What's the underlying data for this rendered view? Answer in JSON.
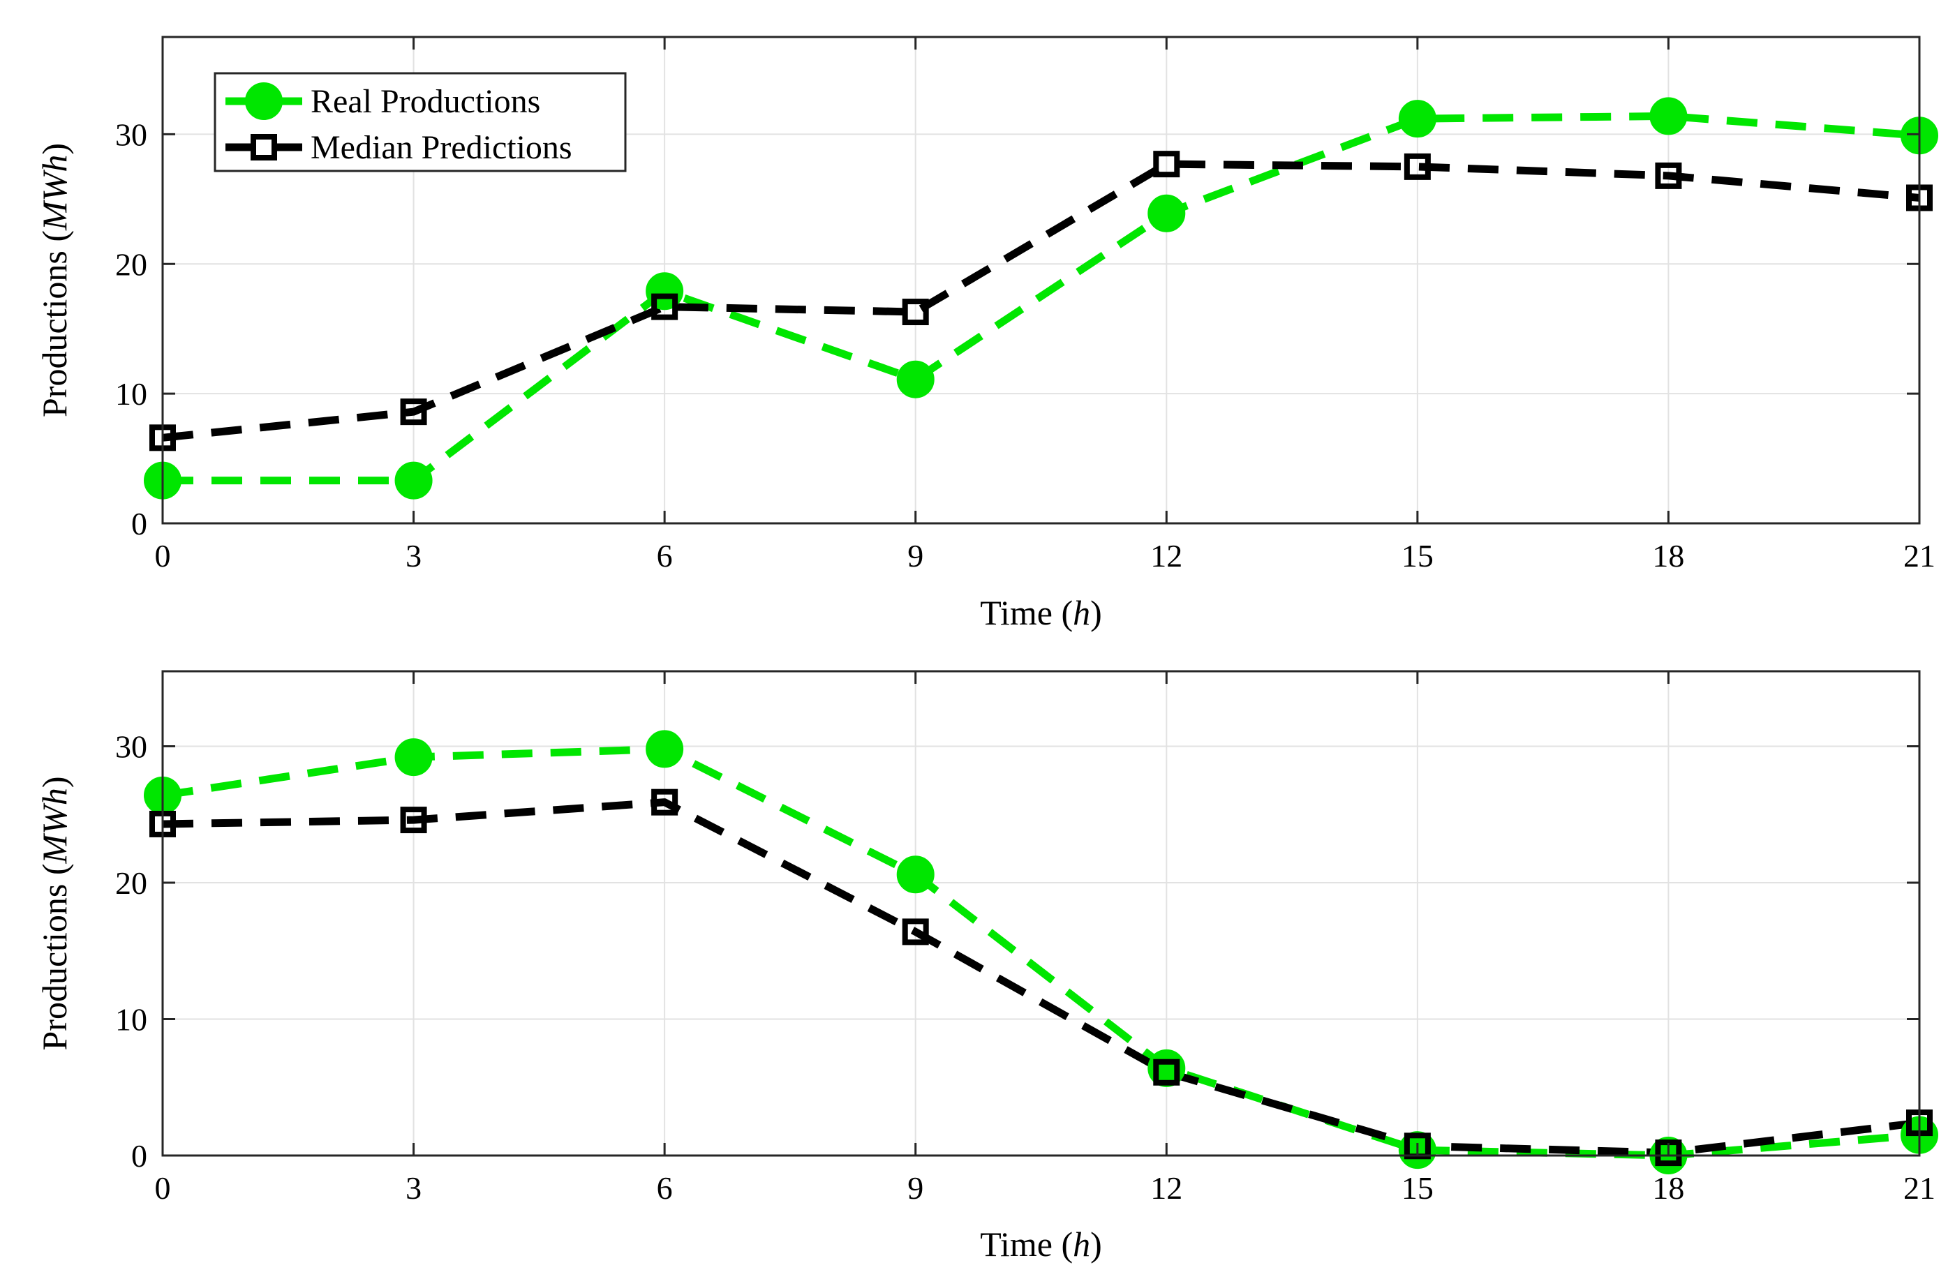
{
  "chart_data": [
    {
      "type": "line",
      "xlabel": "Time",
      "xlabel_unit": "h",
      "ylabel": "Productions",
      "ylabel_unit": "MWh",
      "x": [
        0,
        3,
        6,
        9,
        12,
        15,
        18,
        21
      ],
      "xticks": [
        0,
        3,
        6,
        9,
        12,
        15,
        18,
        21
      ],
      "yticks": [
        0,
        10,
        20,
        30
      ],
      "xlim": [
        0,
        21
      ],
      "ylim": [
        0,
        37.5
      ],
      "grid": true,
      "legend": {
        "position": "top-left",
        "visible": true
      },
      "series": [
        {
          "name": "Real Productions",
          "color": "#00e600",
          "marker": "circle",
          "line": "dashed",
          "values": [
            3.3,
            3.3,
            17.9,
            11.1,
            23.9,
            31.2,
            31.4,
            29.9
          ]
        },
        {
          "name": "Median Predictions",
          "color": "#000000",
          "marker": "square",
          "line": "dashed",
          "values": [
            6.6,
            8.6,
            16.7,
            16.3,
            27.7,
            27.5,
            26.8,
            25.1
          ]
        }
      ]
    },
    {
      "type": "line",
      "xlabel": "Time",
      "xlabel_unit": "h",
      "ylabel": "Productions",
      "ylabel_unit": "MWh",
      "x": [
        0,
        3,
        6,
        9,
        12,
        15,
        18,
        21
      ],
      "xticks": [
        0,
        3,
        6,
        9,
        12,
        15,
        18,
        21
      ],
      "yticks": [
        0,
        10,
        20,
        30
      ],
      "xlim": [
        0,
        21
      ],
      "ylim": [
        0,
        35.5
      ],
      "grid": true,
      "legend": {
        "visible": false
      },
      "series": [
        {
          "name": "Real Productions",
          "color": "#00e600",
          "marker": "circle",
          "line": "dashed",
          "values": [
            26.4,
            29.2,
            29.8,
            20.6,
            6.4,
            0.4,
            0.0,
            1.5
          ]
        },
        {
          "name": "Median Predictions",
          "color": "#000000",
          "marker": "square",
          "line": "dashed",
          "values": [
            24.3,
            24.6,
            25.9,
            16.4,
            6.1,
            0.7,
            0.2,
            2.4
          ]
        }
      ]
    }
  ]
}
